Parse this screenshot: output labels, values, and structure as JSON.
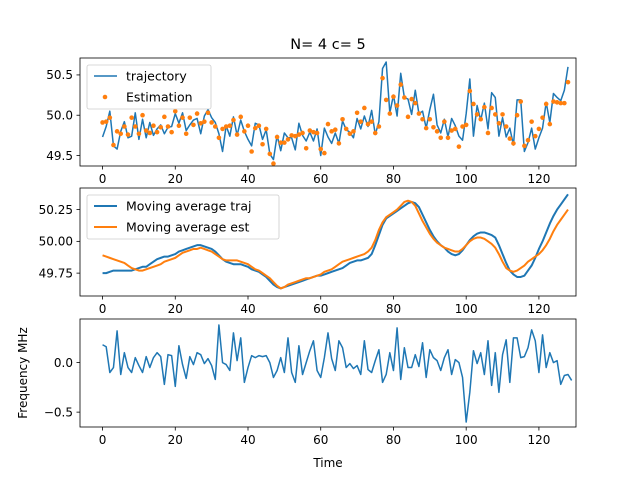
{
  "colors": {
    "traj": "#1f77b4",
    "est": "#ff7f0e"
  },
  "chart_data": [
    {
      "type": "line",
      "title": "N= 4 c= 5",
      "xlabel": "",
      "ylabel": "",
      "xlim": [
        -6.2,
        130.2
      ],
      "ylim": [
        49.37,
        50.71
      ],
      "xticks": [
        0,
        20,
        40,
        60,
        80,
        100,
        120
      ],
      "xtick_labels": [
        "0",
        "20",
        "40",
        "60",
        "80",
        "100",
        "120"
      ],
      "yticks": [
        49.5,
        50.0,
        50.5
      ],
      "ytick_labels": [
        "49.5",
        "50.0",
        "50.5"
      ],
      "legend_position": "upper left",
      "series": [
        {
          "name": "trajectory",
          "style": "line",
          "values": [
            49.73,
            49.86,
            50.05,
            49.62,
            49.58,
            49.8,
            49.92,
            49.72,
            49.74,
            50.03,
            49.7,
            49.95,
            49.72,
            49.91,
            49.75,
            49.83,
            49.88,
            49.77,
            49.85,
            49.86,
            50.02,
            49.9,
            50.03,
            49.81,
            49.88,
            49.94,
            49.96,
            49.77,
            49.99,
            50.07,
            49.97,
            49.91,
            49.77,
            49.55,
            49.87,
            49.74,
            49.98,
            49.75,
            49.94,
            49.8,
            49.7,
            49.62,
            49.9,
            49.88,
            49.7,
            49.82,
            49.52,
            49.45,
            49.75,
            49.56,
            49.78,
            49.72,
            49.72,
            49.57,
            49.9,
            49.75,
            49.68,
            49.79,
            49.68,
            49.83,
            49.5,
            49.84,
            49.73,
            49.65,
            49.78,
            49.65,
            49.93,
            49.82,
            49.79,
            49.72,
            49.96,
            49.83,
            49.99,
            49.86,
            50.06,
            49.76,
            49.92,
            50.58,
            50.66,
            50.03,
            50.25,
            49.99,
            50.52,
            50.22,
            50.2,
            50.01,
            50.31,
            50.02,
            50.05,
            49.84,
            50.07,
            50.26,
            49.88,
            49.78,
            49.95,
            49.73,
            49.96,
            49.87,
            49.74,
            49.69,
            50.02,
            50.45,
            49.74,
            50.12,
            49.94,
            50.15,
            49.83,
            50.28,
            50.22,
            49.74,
            49.97,
            49.73,
            49.84,
            49.63,
            50.19,
            50.19,
            49.55,
            49.66,
            49.84,
            49.58,
            49.72,
            49.84,
            50.16,
            49.91,
            50.27,
            50.22,
            50.18,
            50.31,
            50.6
          ]
        },
        {
          "name": "Estimation",
          "style": "dots",
          "values": [
            49.91,
            49.92,
            49.97,
            49.63,
            49.8,
            49.77,
            49.86,
            49.76,
            49.97,
            49.86,
            49.77,
            50.0,
            49.81,
            49.78,
            49.87,
            49.79,
            49.85,
            49.98,
            49.86,
            49.79,
            50.05,
            49.87,
            49.97,
            49.77,
            49.97,
            49.88,
            50.02,
            49.9,
            49.92,
            50.03,
            49.91,
            49.86,
            49.72,
            49.83,
            49.86,
            49.87,
            49.94,
            49.76,
            49.98,
            49.8,
            49.87,
            49.55,
            49.84,
            49.87,
            49.64,
            49.83,
            49.52,
            49.4,
            49.73,
            49.66,
            49.66,
            49.7,
            49.75,
            49.74,
            49.76,
            49.78,
            49.59,
            49.81,
            49.79,
            49.78,
            49.58,
            49.53,
            49.89,
            49.8,
            49.82,
            49.65,
            49.95,
            49.83,
            49.77,
            49.8,
            50.03,
            49.92,
            50.09,
            49.89,
            49.92,
            49.78,
            49.86,
            50.46,
            50.19,
            50.02,
            50.23,
            50.12,
            50.38,
            50.22,
            49.98,
            50.2,
            50.15,
            50.02,
            49.95,
            49.84,
            49.95,
            49.85,
            49.8,
            49.72,
            49.92,
            49.72,
            49.81,
            49.83,
            49.61,
            49.86,
            49.88,
            50.3,
            50.14,
            50.01,
            49.95,
            50.1,
            49.78,
            50.09,
            50.01,
            49.9,
            50.01,
            49.86,
            49.71,
            49.65,
            50.0,
            50.17,
            49.62,
            49.69,
            49.92,
            49.74,
            49.83,
            49.97,
            50.14,
            49.89,
            50.17,
            50.16,
            50.15,
            50.15,
            50.41
          ]
        }
      ]
    },
    {
      "type": "line",
      "title": "",
      "xlabel": "",
      "ylabel": "",
      "xlim": [
        -6.2,
        130.2
      ],
      "ylim": [
        49.57,
        50.42
      ],
      "xticks": [
        0,
        20,
        40,
        60,
        80,
        100,
        120
      ],
      "xtick_labels": [
        "0",
        "20",
        "40",
        "60",
        "80",
        "100",
        "120"
      ],
      "yticks": [
        49.75,
        50.0,
        50.25
      ],
      "ytick_labels": [
        "49.75",
        "50.00",
        "50.25"
      ],
      "legend_position": "upper left",
      "series": [
        {
          "name": "Moving average traj",
          "style": "line",
          "values": [
            49.75,
            49.75,
            49.76,
            49.77,
            49.77,
            49.77,
            49.77,
            49.77,
            49.77,
            49.78,
            49.79,
            49.8,
            49.8,
            49.82,
            49.84,
            49.86,
            49.87,
            49.88,
            49.88,
            49.89,
            49.9,
            49.92,
            49.93,
            49.94,
            49.95,
            49.96,
            49.97,
            49.97,
            49.96,
            49.95,
            49.94,
            49.92,
            49.89,
            49.86,
            49.84,
            49.83,
            49.82,
            49.82,
            49.82,
            49.81,
            49.8,
            49.78,
            49.77,
            49.76,
            49.74,
            49.72,
            49.69,
            49.66,
            49.64,
            49.63,
            49.64,
            49.65,
            49.66,
            49.67,
            49.68,
            49.69,
            49.7,
            49.71,
            49.72,
            49.73,
            49.73,
            49.74,
            49.75,
            49.76,
            49.77,
            49.78,
            49.79,
            49.81,
            49.83,
            49.84,
            49.85,
            49.85,
            49.86,
            49.87,
            49.9,
            49.97,
            50.05,
            50.13,
            50.18,
            50.2,
            50.22,
            50.24,
            50.26,
            50.28,
            50.3,
            50.31,
            50.3,
            50.27,
            50.21,
            50.15,
            50.09,
            50.04,
            50.0,
            49.97,
            49.95,
            49.92,
            49.9,
            49.89,
            49.9,
            49.93,
            49.97,
            50.01,
            50.04,
            50.06,
            50.07,
            50.07,
            50.06,
            50.05,
            50.03,
            49.97,
            49.9,
            49.83,
            49.77,
            49.74,
            49.72,
            49.72,
            49.73,
            49.77,
            49.81,
            49.87,
            49.94,
            50.0,
            50.07,
            50.14,
            50.2,
            50.25,
            50.29,
            50.33,
            50.37
          ]
        },
        {
          "name": "Moving average est",
          "style": "line",
          "values": [
            49.89,
            49.88,
            49.87,
            49.86,
            49.85,
            49.84,
            49.83,
            49.81,
            49.79,
            49.78,
            49.77,
            49.77,
            49.78,
            49.79,
            49.8,
            49.81,
            49.82,
            49.84,
            49.85,
            49.86,
            49.87,
            49.89,
            49.91,
            49.92,
            49.93,
            49.94,
            49.94,
            49.95,
            49.94,
            49.93,
            49.92,
            49.9,
            49.88,
            49.86,
            49.85,
            49.85,
            49.85,
            49.85,
            49.84,
            49.83,
            49.82,
            49.8,
            49.78,
            49.77,
            49.75,
            49.73,
            49.71,
            49.68,
            49.65,
            49.63,
            49.64,
            49.66,
            49.67,
            49.68,
            49.69,
            49.7,
            49.71,
            49.71,
            49.72,
            49.73,
            49.74,
            49.76,
            49.77,
            49.78,
            49.8,
            49.82,
            49.84,
            49.85,
            49.86,
            49.87,
            49.88,
            49.89,
            49.9,
            49.92,
            49.95,
            50.01,
            50.09,
            50.15,
            50.19,
            50.21,
            50.23,
            50.25,
            50.28,
            50.31,
            50.32,
            50.31,
            50.28,
            50.22,
            50.16,
            50.11,
            50.06,
            50.02,
            49.99,
            49.97,
            49.95,
            49.94,
            49.93,
            49.92,
            49.92,
            49.94,
            49.97,
            50.0,
            50.02,
            50.03,
            50.03,
            50.02,
            50.0,
            49.98,
            49.95,
            49.9,
            49.84,
            49.79,
            49.77,
            49.76,
            49.77,
            49.79,
            49.81,
            49.84,
            49.86,
            49.88,
            49.9,
            49.93,
            49.97,
            50.02,
            50.08,
            50.13,
            50.17,
            50.21,
            50.25
          ]
        }
      ]
    },
    {
      "type": "line",
      "title": "",
      "xlabel": "Time",
      "ylabel": "Frequency MHz",
      "xlim": [
        -6.2,
        130.2
      ],
      "ylim": [
        -0.65,
        0.44
      ],
      "xticks": [
        0,
        20,
        40,
        60,
        80,
        100,
        120
      ],
      "xtick_labels": [
        "0",
        "20",
        "40",
        "60",
        "80",
        "100",
        "120"
      ],
      "yticks": [
        -0.5,
        0.0
      ],
      "ytick_labels": [
        "−0.5",
        "0.0"
      ],
      "series": [
        {
          "name": "",
          "style": "line",
          "values": [
            0.18,
            0.16,
            -0.1,
            -0.05,
            0.32,
            -0.12,
            0.1,
            -0.05,
            -0.1,
            0.05,
            -0.03,
            -0.1,
            0.06,
            -0.05,
            0.05,
            0.1,
            0.06,
            -0.22,
            0.08,
            0.07,
            -0.24,
            0.17,
            -0.02,
            -0.16,
            0.06,
            -0.02,
            0.1,
            0.08,
            -0.01,
            0.04,
            -0.03,
            -0.17,
            0.38,
            0.0,
            -0.02,
            -0.08,
            0.3,
            0.02,
            0.25,
            -0.2,
            -0.05,
            0.07,
            0.05,
            0.07,
            0.06,
            0.07,
            0.0,
            -0.15,
            -0.08,
            0.05,
            -0.1,
            0.25,
            -0.1,
            -0.2,
            0.17,
            -0.12,
            0.0,
            0.12,
            0.22,
            -0.08,
            -0.15,
            0.05,
            0.3,
            0.04,
            -0.08,
            0.22,
            0.15,
            -0.05,
            -0.01,
            -0.06,
            -0.03,
            -0.12,
            0.22,
            -0.07,
            -0.1,
            0.02,
            0.13,
            -0.2,
            -0.12,
            0.1,
            -0.08,
            0.35,
            -0.17,
            0.15,
            -0.05,
            -0.05,
            0.08,
            -0.04,
            0.2,
            -0.15,
            0.13,
            0.05,
            0.02,
            -0.08,
            0.05,
            0.13,
            -0.12,
            0.03,
            0.0,
            -0.15,
            -0.6,
            -0.3,
            0.12,
            -0.01,
            0.1,
            -0.12,
            0.22,
            -0.23,
            0.1,
            -0.3,
            0.08,
            0.23,
            -0.2,
            0.25,
            0.25,
            0.05,
            0.06,
            0.15,
            0.33,
            0.22,
            -0.1,
            0.28,
            -0.05,
            0.1,
            0.0,
            0.02,
            -0.22,
            -0.13,
            -0.12,
            -0.18
          ]
        }
      ]
    }
  ]
}
